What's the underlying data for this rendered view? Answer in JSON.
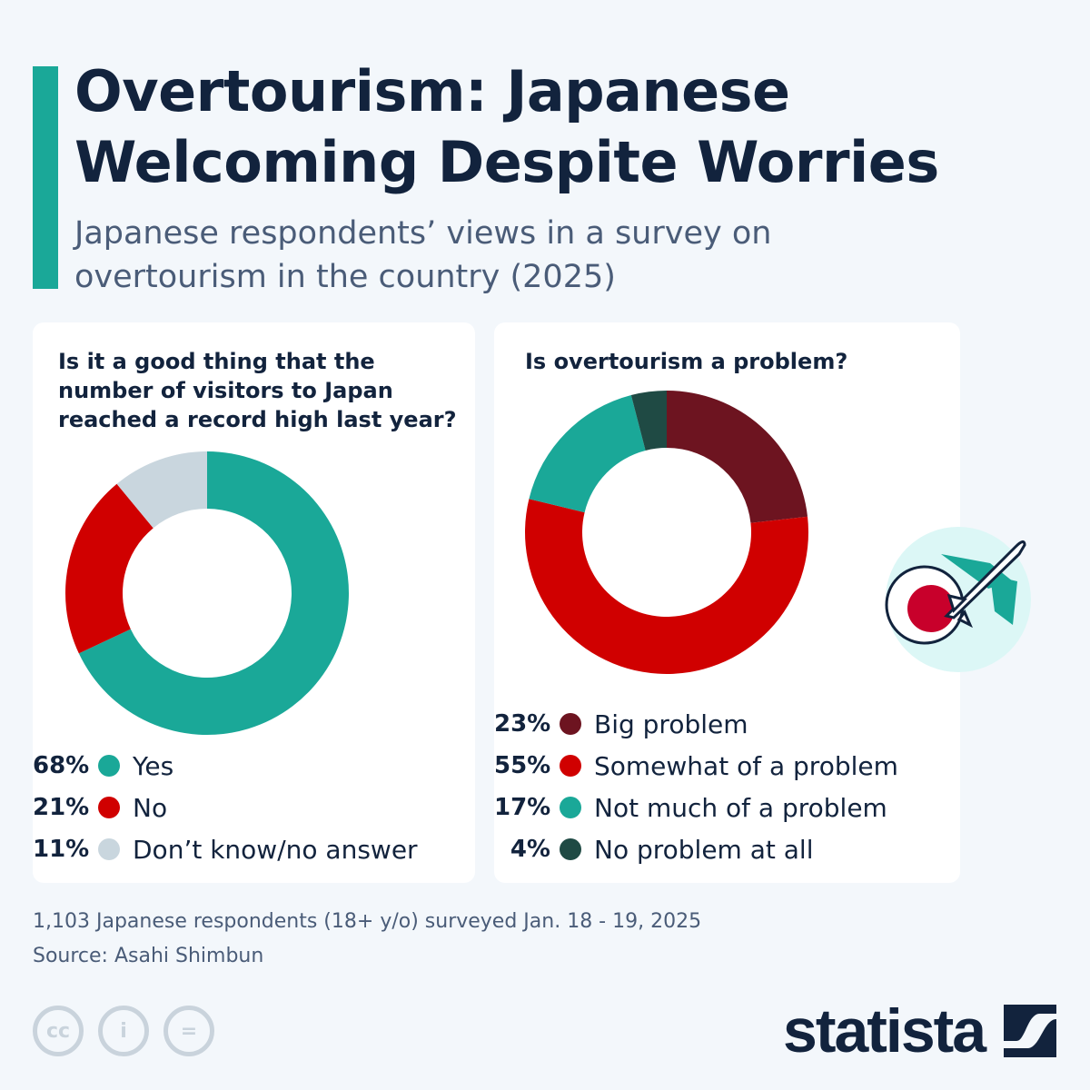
{
  "header": {
    "title": "Overtourism: Japanese Welcoming Despite Worries",
    "subtitle": "Japanese respondents’ views in a survey on overtourism in the country (2025)"
  },
  "chart_data": [
    {
      "type": "pie",
      "donut": true,
      "title": "Is it a good thing that the number of visitors to Japan reached a record high last year?",
      "categories": [
        "Yes",
        "No",
        "Don’t know/no answer"
      ],
      "values": [
        68,
        21,
        11
      ],
      "labels": [
        "68%",
        "21%",
        "11%"
      ],
      "colors": [
        "#1aa898",
        "#d00000",
        "#c9d6de"
      ]
    },
    {
      "type": "pie",
      "donut": true,
      "title": "Is overtourism a problem?",
      "categories": [
        "Big problem",
        "Somewhat of a problem",
        "Not much of a problem",
        "No problem at all"
      ],
      "values": [
        23,
        55,
        17,
        4
      ],
      "labels": [
        "23%",
        "55%",
        "17%",
        "4%"
      ],
      "colors": [
        "#6d1420",
        "#d00000",
        "#1aa898",
        "#1f4a44"
      ]
    }
  ],
  "footer": {
    "note": "1,103 Japanese respondents (18+ y/o) surveyed Jan. 18 - 19, 2025",
    "source": "Source: Asahi Shimbun",
    "cc": "cc",
    "brand": "statista"
  },
  "icons": [
    "japan-flag-airplane-icon",
    "cc-icon",
    "attribution-icon",
    "no-derivatives-icon",
    "statista-logo-icon"
  ]
}
